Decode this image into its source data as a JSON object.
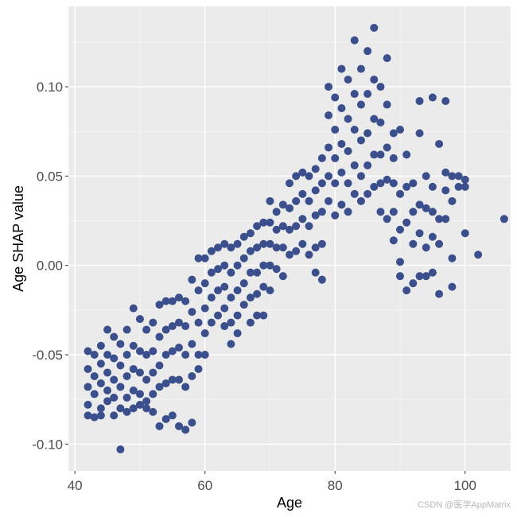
{
  "chart_data": {
    "type": "scatter",
    "xlabel": "Age",
    "ylabel": "Age SHAP value",
    "xlim": [
      39,
      107
    ],
    "ylim": [
      -0.115,
      0.145
    ],
    "x_ticks": [
      40,
      60,
      80,
      100
    ],
    "x_tick_labels": [
      "40",
      "60",
      "80",
      "100"
    ],
    "y_ticks": [
      -0.1,
      -0.05,
      0.0,
      0.05,
      0.1
    ],
    "y_tick_labels": [
      "-0.10",
      "-0.05",
      "0.00",
      "0.05",
      "0.10"
    ],
    "grid": true,
    "colors": {
      "point": "#3b4f8c",
      "panel": "#ebebeb",
      "grid_major": "#ffffff",
      "grid_minor": "#f5f5f5"
    },
    "series": [
      {
        "points": [
          [
            42,
            -0.048
          ],
          [
            42,
            -0.058
          ],
          [
            42,
            -0.068
          ],
          [
            42,
            -0.078
          ],
          [
            42,
            -0.084
          ],
          [
            43,
            -0.05
          ],
          [
            43,
            -0.062
          ],
          [
            43,
            -0.072
          ],
          [
            43,
            -0.085
          ],
          [
            44,
            -0.045
          ],
          [
            44,
            -0.055
          ],
          [
            44,
            -0.066
          ],
          [
            44,
            -0.08
          ],
          [
            44,
            -0.084
          ],
          [
            45,
            -0.036
          ],
          [
            45,
            -0.05
          ],
          [
            45,
            -0.06
          ],
          [
            45,
            -0.07
          ],
          [
            45,
            -0.076
          ],
          [
            46,
            -0.04
          ],
          [
            46,
            -0.052
          ],
          [
            46,
            -0.064
          ],
          [
            46,
            -0.074
          ],
          [
            46,
            -0.084
          ],
          [
            47,
            -0.044
          ],
          [
            47,
            -0.056
          ],
          [
            47,
            -0.068
          ],
          [
            47,
            -0.08
          ],
          [
            47,
            -0.103
          ],
          [
            48,
            -0.036
          ],
          [
            48,
            -0.05
          ],
          [
            48,
            -0.062
          ],
          [
            48,
            -0.074
          ],
          [
            48,
            -0.082
          ],
          [
            49,
            -0.024
          ],
          [
            49,
            -0.045
          ],
          [
            49,
            -0.058
          ],
          [
            49,
            -0.07
          ],
          [
            49,
            -0.08
          ],
          [
            50,
            -0.03
          ],
          [
            50,
            -0.048
          ],
          [
            50,
            -0.06
          ],
          [
            50,
            -0.072
          ],
          [
            50,
            -0.078
          ],
          [
            51,
            -0.036
          ],
          [
            51,
            -0.05
          ],
          [
            51,
            -0.064
          ],
          [
            51,
            -0.076
          ],
          [
            51,
            -0.08
          ],
          [
            52,
            -0.032
          ],
          [
            52,
            -0.048
          ],
          [
            52,
            -0.06
          ],
          [
            52,
            -0.072
          ],
          [
            52,
            -0.082
          ],
          [
            53,
            -0.022
          ],
          [
            53,
            -0.04
          ],
          [
            53,
            -0.056
          ],
          [
            53,
            -0.068
          ],
          [
            53,
            -0.09
          ],
          [
            54,
            -0.02
          ],
          [
            54,
            -0.036
          ],
          [
            54,
            -0.05
          ],
          [
            54,
            -0.066
          ],
          [
            54,
            -0.086
          ],
          [
            55,
            -0.02
          ],
          [
            55,
            -0.034
          ],
          [
            55,
            -0.048
          ],
          [
            55,
            -0.064
          ],
          [
            55,
            -0.084
          ],
          [
            56,
            -0.018
          ],
          [
            56,
            -0.032
          ],
          [
            56,
            -0.046
          ],
          [
            56,
            -0.064
          ],
          [
            56,
            -0.09
          ],
          [
            57,
            -0.02
          ],
          [
            57,
            -0.034
          ],
          [
            57,
            -0.05
          ],
          [
            57,
            -0.068
          ],
          [
            57,
            -0.092
          ],
          [
            58,
            -0.008
          ],
          [
            58,
            -0.026
          ],
          [
            58,
            -0.044
          ],
          [
            58,
            -0.062
          ],
          [
            58,
            -0.088
          ],
          [
            59,
            0.004
          ],
          [
            59,
            -0.014
          ],
          [
            59,
            -0.032
          ],
          [
            59,
            -0.05
          ],
          [
            59,
            -0.058
          ],
          [
            60,
            0.004
          ],
          [
            60,
            -0.01
          ],
          [
            60,
            -0.024
          ],
          [
            60,
            -0.038
          ],
          [
            60,
            -0.05
          ],
          [
            61,
            0.008
          ],
          [
            61,
            -0.004
          ],
          [
            61,
            -0.018
          ],
          [
            61,
            -0.032
          ],
          [
            62,
            0.01
          ],
          [
            62,
            -0.002
          ],
          [
            62,
            -0.014
          ],
          [
            62,
            -0.028
          ],
          [
            63,
            0.012
          ],
          [
            63,
            0.0
          ],
          [
            63,
            -0.012
          ],
          [
            63,
            -0.024
          ],
          [
            63,
            -0.034
          ],
          [
            64,
            0.01
          ],
          [
            64,
            -0.004
          ],
          [
            64,
            -0.018
          ],
          [
            64,
            -0.032
          ],
          [
            64,
            -0.044
          ],
          [
            65,
            0.012
          ],
          [
            65,
            0.0
          ],
          [
            65,
            -0.014
          ],
          [
            65,
            -0.028
          ],
          [
            65,
            -0.038
          ],
          [
            66,
            0.016
          ],
          [
            66,
            0.004
          ],
          [
            66,
            -0.01
          ],
          [
            66,
            -0.022
          ],
          [
            67,
            0.018
          ],
          [
            67,
            0.008
          ],
          [
            67,
            -0.004
          ],
          [
            67,
            -0.018
          ],
          [
            67,
            -0.032
          ],
          [
            68,
            0.022
          ],
          [
            68,
            0.01
          ],
          [
            68,
            -0.004
          ],
          [
            68,
            -0.016
          ],
          [
            68,
            -0.028
          ],
          [
            69,
            0.024
          ],
          [
            69,
            0.012
          ],
          [
            69,
            0.0
          ],
          [
            69,
            -0.012
          ],
          [
            69,
            -0.028
          ],
          [
            70,
            0.036
          ],
          [
            70,
            0.024
          ],
          [
            70,
            0.012
          ],
          [
            70,
            0.0
          ],
          [
            70,
            -0.014
          ],
          [
            71,
            0.03
          ],
          [
            71,
            0.02
          ],
          [
            71,
            0.01
          ],
          [
            71,
            -0.002
          ],
          [
            72,
            0.034
          ],
          [
            72,
            0.022
          ],
          [
            72,
            0.01
          ],
          [
            72,
            -0.006
          ],
          [
            73,
            0.046
          ],
          [
            73,
            0.032
          ],
          [
            73,
            0.02
          ],
          [
            73,
            0.006
          ],
          [
            74,
            0.05
          ],
          [
            74,
            0.036
          ],
          [
            74,
            0.022
          ],
          [
            74,
            0.008
          ],
          [
            75,
            0.052
          ],
          [
            75,
            0.04
          ],
          [
            75,
            0.026
          ],
          [
            75,
            0.012
          ],
          [
            76,
            0.05
          ],
          [
            76,
            0.036
          ],
          [
            76,
            0.022
          ],
          [
            76,
            0.006
          ],
          [
            77,
            0.054
          ],
          [
            77,
            0.042
          ],
          [
            77,
            0.028
          ],
          [
            77,
            0.01
          ],
          [
            77,
            -0.004
          ],
          [
            78,
            0.06
          ],
          [
            78,
            0.046
          ],
          [
            78,
            0.03
          ],
          [
            78,
            0.012
          ],
          [
            78,
            -0.008
          ],
          [
            79,
            0.1
          ],
          [
            79,
            0.084
          ],
          [
            79,
            0.066
          ],
          [
            79,
            0.05
          ],
          [
            79,
            0.036
          ],
          [
            80,
            0.094
          ],
          [
            80,
            0.076
          ],
          [
            80,
            0.06
          ],
          [
            80,
            0.046
          ],
          [
            80,
            0.028
          ],
          [
            81,
            0.11
          ],
          [
            81,
            0.088
          ],
          [
            81,
            0.068
          ],
          [
            81,
            0.052
          ],
          [
            81,
            0.034
          ],
          [
            82,
            0.104
          ],
          [
            82,
            0.082
          ],
          [
            82,
            0.064
          ],
          [
            82,
            0.046
          ],
          [
            82,
            0.03
          ],
          [
            83,
            0.126
          ],
          [
            83,
            0.096
          ],
          [
            83,
            0.076
          ],
          [
            83,
            0.056
          ],
          [
            83,
            0.04
          ],
          [
            84,
            0.11
          ],
          [
            84,
            0.09
          ],
          [
            84,
            0.07
          ],
          [
            84,
            0.05
          ],
          [
            84,
            0.036
          ],
          [
            85,
            0.12
          ],
          [
            85,
            0.096
          ],
          [
            85,
            0.074
          ],
          [
            85,
            0.056
          ],
          [
            85,
            0.04
          ],
          [
            86,
            0.133
          ],
          [
            86,
            0.104
          ],
          [
            86,
            0.082
          ],
          [
            86,
            0.062
          ],
          [
            86,
            0.044
          ],
          [
            87,
            0.1
          ],
          [
            87,
            0.08
          ],
          [
            87,
            0.062
          ],
          [
            87,
            0.046
          ],
          [
            87,
            0.03
          ],
          [
            88,
            0.116
          ],
          [
            88,
            0.09
          ],
          [
            88,
            0.066
          ],
          [
            88,
            0.048
          ],
          [
            88,
            0.026
          ],
          [
            89,
            0.074
          ],
          [
            89,
            0.06
          ],
          [
            89,
            0.046
          ],
          [
            89,
            0.03
          ],
          [
            89,
            0.014
          ],
          [
            90,
            0.076
          ],
          [
            90,
            0.04
          ],
          [
            90,
            0.02
          ],
          [
            90,
            0.002
          ],
          [
            90,
            -0.006
          ],
          [
            91,
            0.062
          ],
          [
            91,
            0.044
          ],
          [
            91,
            0.024
          ],
          [
            91,
            -0.014
          ],
          [
            92,
            0.046
          ],
          [
            92,
            0.03
          ],
          [
            92,
            0.012
          ],
          [
            92,
            -0.01
          ],
          [
            93,
            0.092
          ],
          [
            93,
            0.074
          ],
          [
            93,
            0.034
          ],
          [
            93,
            0.018
          ],
          [
            93,
            -0.006
          ],
          [
            94,
            0.05
          ],
          [
            94,
            0.032
          ],
          [
            94,
            0.01
          ],
          [
            94,
            -0.006
          ],
          [
            95,
            0.094
          ],
          [
            95,
            0.044
          ],
          [
            95,
            0.03
          ],
          [
            95,
            0.016
          ],
          [
            95,
            -0.004
          ],
          [
            96,
            0.068
          ],
          [
            96,
            0.026
          ],
          [
            96,
            0.012
          ],
          [
            96,
            -0.016
          ],
          [
            97,
            0.092
          ],
          [
            97,
            0.052
          ],
          [
            97,
            0.042
          ],
          [
            97,
            0.026
          ],
          [
            98,
            0.05
          ],
          [
            98,
            0.036
          ],
          [
            98,
            0.004
          ],
          [
            98,
            -0.012
          ],
          [
            99,
            0.05
          ],
          [
            99,
            0.044
          ],
          [
            100,
            0.048
          ],
          [
            100,
            0.044
          ],
          [
            100,
            0.018
          ],
          [
            102,
            0.006
          ],
          [
            106,
            0.026
          ]
        ]
      }
    ]
  },
  "watermark": "CSDN @医学AppMatrix"
}
